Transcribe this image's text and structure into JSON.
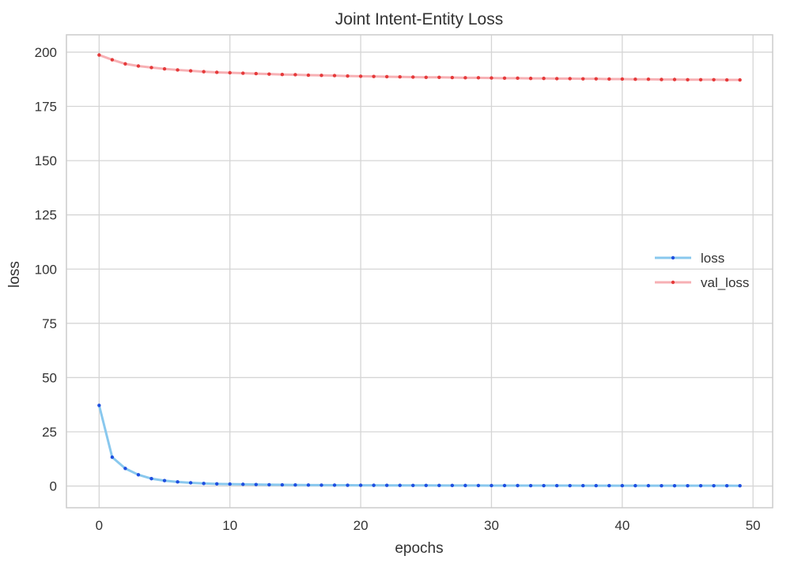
{
  "chart_data": {
    "type": "line",
    "title": "Joint Intent-Entity Loss",
    "xlabel": "epochs",
    "ylabel": "loss",
    "xlim": [
      -2.5,
      51.5
    ],
    "ylim": [
      -10,
      208
    ],
    "x_ticks": [
      0,
      10,
      20,
      30,
      40,
      50
    ],
    "y_ticks": [
      0,
      25,
      50,
      75,
      100,
      125,
      150,
      175,
      200
    ],
    "grid": true,
    "legend_position": "center-right",
    "x": [
      0,
      1,
      2,
      3,
      4,
      5,
      6,
      7,
      8,
      9,
      10,
      11,
      12,
      13,
      14,
      15,
      16,
      17,
      18,
      19,
      20,
      21,
      22,
      23,
      24,
      25,
      26,
      27,
      28,
      29,
      30,
      31,
      32,
      33,
      34,
      35,
      36,
      37,
      38,
      39,
      40,
      41,
      42,
      43,
      44,
      45,
      46,
      47,
      48,
      49
    ],
    "series": [
      {
        "name": "loss",
        "line_color": "#89c8ee",
        "marker_color": "#1f4fe0",
        "values": [
          37.2,
          13.3,
          8.1,
          5.2,
          3.4,
          2.5,
          1.9,
          1.5,
          1.2,
          1.0,
          0.9,
          0.8,
          0.7,
          0.6,
          0.55,
          0.5,
          0.45,
          0.42,
          0.4,
          0.38,
          0.36,
          0.34,
          0.32,
          0.3,
          0.29,
          0.28,
          0.27,
          0.26,
          0.25,
          0.24,
          0.23,
          0.22,
          0.21,
          0.2,
          0.2,
          0.19,
          0.19,
          0.18,
          0.18,
          0.17,
          0.17,
          0.16,
          0.16,
          0.15,
          0.15,
          0.15,
          0.14,
          0.14,
          0.14,
          0.13
        ]
      },
      {
        "name": "val_loss",
        "line_color": "#f7b0b4",
        "marker_color": "#e53a3a",
        "values": [
          198.7,
          196.5,
          194.6,
          193.6,
          192.9,
          192.3,
          191.8,
          191.4,
          191.0,
          190.7,
          190.5,
          190.3,
          190.1,
          189.9,
          189.7,
          189.6,
          189.4,
          189.3,
          189.2,
          189.0,
          188.9,
          188.8,
          188.7,
          188.6,
          188.5,
          188.4,
          188.4,
          188.3,
          188.2,
          188.2,
          188.1,
          188.0,
          188.0,
          187.9,
          187.9,
          187.8,
          187.8,
          187.7,
          187.7,
          187.6,
          187.6,
          187.5,
          187.5,
          187.4,
          187.4,
          187.3,
          187.3,
          187.3,
          187.2,
          187.2
        ]
      }
    ]
  }
}
